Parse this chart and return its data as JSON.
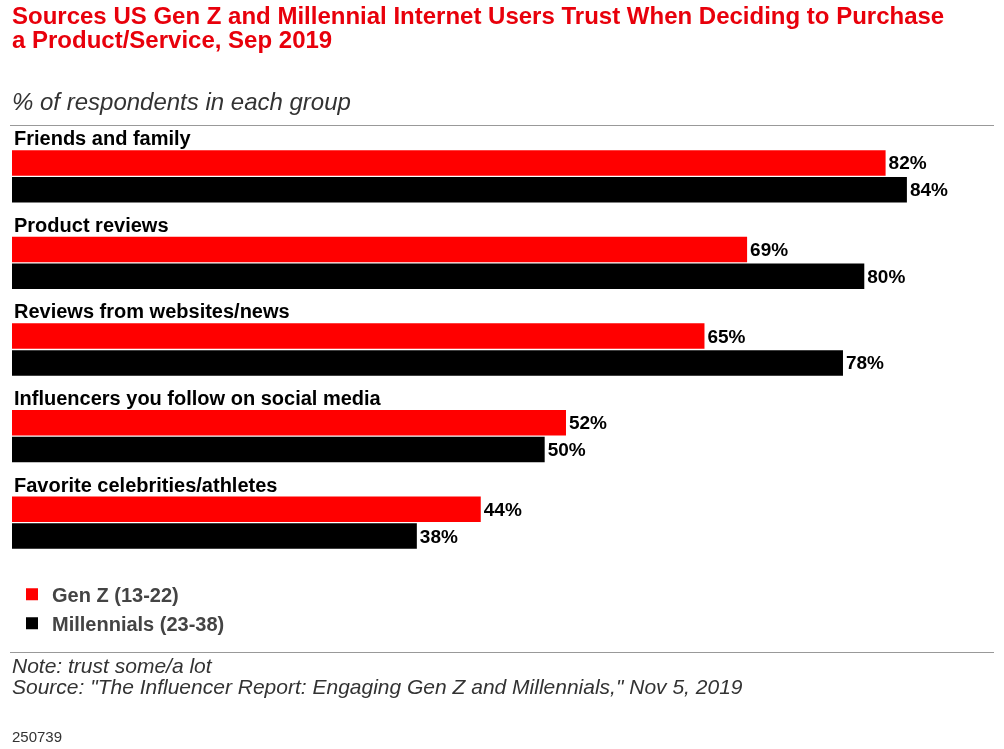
{
  "chart_data": {
    "type": "bar",
    "orientation": "horizontal",
    "title": "Sources US Gen Z and Millennial Internet Users Trust When Deciding to Purchase a Product/Service, Sep 2019",
    "subtitle": "% of respondents in each group",
    "categories": [
      "Friends and family",
      "Product reviews",
      "Reviews from websites/news",
      "Influencers you follow on social media",
      "Favorite celebrities/athletes"
    ],
    "series": [
      {
        "name": "Gen Z (13-22)",
        "color": "#ff0000",
        "values": [
          82,
          69,
          65,
          52,
          44
        ],
        "value_labels": [
          "82%",
          "69%",
          "65%",
          "52%",
          "44%"
        ]
      },
      {
        "name": "Millennials (23-38)",
        "color": "#000000",
        "values": [
          84,
          80,
          78,
          50,
          38
        ],
        "value_labels": [
          "84%",
          "80%",
          "78%",
          "50%",
          "38%"
        ]
      }
    ],
    "legend": "bottom",
    "grid": false,
    "annotations": [
      "Note: trust some/a lot",
      "Source: \"The Influencer Report: Engaging Gen Z and Millennials,\" Nov 5, 2019",
      "250739"
    ]
  }
}
